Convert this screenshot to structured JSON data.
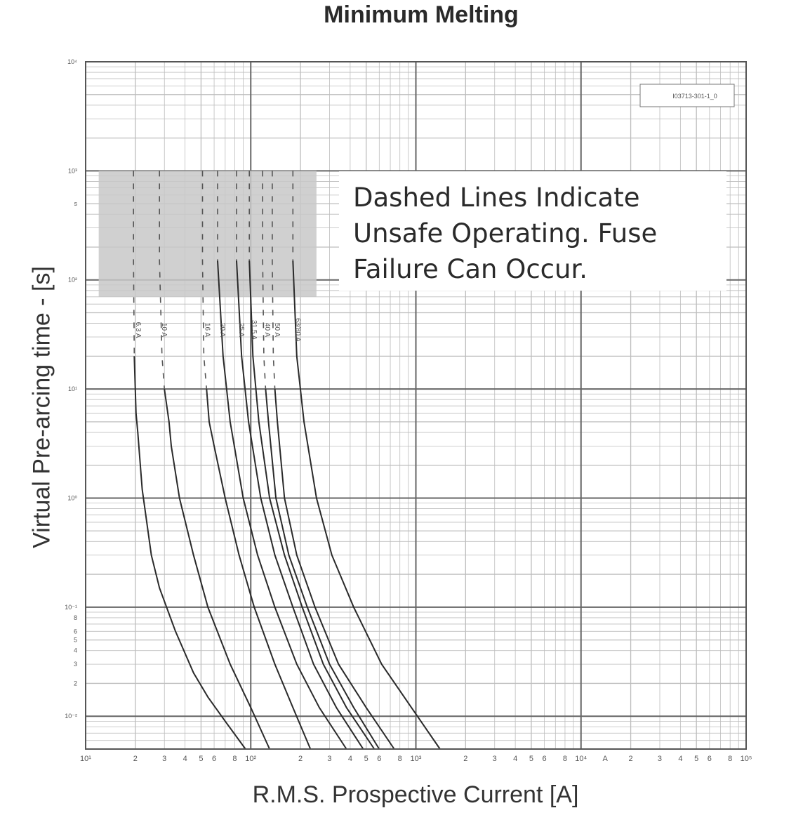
{
  "chart_data": {
    "type": "line",
    "title": "Minimum Melting",
    "xlabel": "R.M.S. Prospective Current [A]",
    "ylabel": "Virtual Pre-arcing time - [s]",
    "x_scale": "log",
    "y_scale": "log",
    "xlim": [
      10,
      100000
    ],
    "ylim": [
      0.005,
      10000
    ],
    "grid": true,
    "legend": "none",
    "code_label": "I03713-301-1_0",
    "note": {
      "lines": [
        "Dashed Lines Indicate",
        "Unsafe Operating. Fuse",
        "Failure Can Occur."
      ],
      "color": "#2a2a2a"
    },
    "shaded_region": {
      "x": [
        12,
        250
      ],
      "y": [
        70,
        1000
      ],
      "color": "#c8c8c8"
    },
    "x_ticks": [
      {
        "value": 10,
        "label": "10¹"
      },
      {
        "value": 20,
        "label": "2"
      },
      {
        "value": 30,
        "label": "3"
      },
      {
        "value": 40,
        "label": "4"
      },
      {
        "value": 50,
        "label": "5"
      },
      {
        "value": 60,
        "label": "6"
      },
      {
        "value": 80,
        "label": "8"
      },
      {
        "value": 100,
        "label": "10²"
      },
      {
        "value": 200,
        "label": "2"
      },
      {
        "value": 300,
        "label": "3"
      },
      {
        "value": 400,
        "label": "4"
      },
      {
        "value": 500,
        "label": "5"
      },
      {
        "value": 600,
        "label": "6"
      },
      {
        "value": 800,
        "label": "8"
      },
      {
        "value": 1000,
        "label": "10³"
      },
      {
        "value": 2000,
        "label": "2"
      },
      {
        "value": 3000,
        "label": "3"
      },
      {
        "value": 4000,
        "label": "4"
      },
      {
        "value": 5000,
        "label": "5"
      },
      {
        "value": 6000,
        "label": "6"
      },
      {
        "value": 8000,
        "label": "8"
      },
      {
        "value": 10000,
        "label": "10⁴"
      },
      {
        "value": 14000,
        "label": "A"
      },
      {
        "value": 20000,
        "label": "2"
      },
      {
        "value": 30000,
        "label": "3"
      },
      {
        "value": 40000,
        "label": "4"
      },
      {
        "value": 50000,
        "label": "5"
      },
      {
        "value": 60000,
        "label": "6"
      },
      {
        "value": 80000,
        "label": "8"
      },
      {
        "value": 100000,
        "label": "10⁵"
      }
    ],
    "y_ticks": [
      {
        "value": 10000,
        "label": "10⁴"
      },
      {
        "value": 1000,
        "label": "10³"
      },
      {
        "value": 500,
        "label": "s"
      },
      {
        "value": 100,
        "label": "10²"
      },
      {
        "value": 10,
        "label": "10¹"
      },
      {
        "value": 1,
        "label": "10⁰"
      },
      {
        "value": 0.1,
        "label": "10⁻¹"
      },
      {
        "value": 0.08,
        "label": "8"
      },
      {
        "value": 0.06,
        "label": "6"
      },
      {
        "value": 0.05,
        "label": "5"
      },
      {
        "value": 0.04,
        "label": "4"
      },
      {
        "value": 0.03,
        "label": "3"
      },
      {
        "value": 0.02,
        "label": "2"
      },
      {
        "value": 0.01,
        "label": "10⁻²"
      }
    ],
    "series": [
      {
        "name": "6.3 A",
        "dashed_from": 3,
        "x": [
          19.5,
          19.5,
          19.7,
          20.2,
          20.7,
          22,
          25,
          28,
          35,
          45,
          55,
          70,
          93
        ],
        "y": [
          1000,
          150,
          20,
          6,
          4,
          1.2,
          0.3,
          0.15,
          0.06,
          0.025,
          0.015,
          0.009,
          0.005
        ]
      },
      {
        "name": "10 A",
        "dashed_from": 4,
        "x": [
          28,
          28,
          29,
          30,
          32,
          33,
          37,
          45,
          55,
          75,
          100,
          130
        ],
        "y": [
          1000,
          150,
          20,
          10,
          5,
          3,
          1,
          0.3,
          0.1,
          0.03,
          0.012,
          0.005
        ]
      },
      {
        "name": "16 A",
        "dashed_from": 4,
        "x": [
          51,
          51,
          52,
          54,
          56,
          60,
          70,
          85,
          105,
          140,
          180,
          230
        ],
        "y": [
          1000,
          150,
          20,
          10,
          5,
          3,
          1,
          0.3,
          0.1,
          0.03,
          0.012,
          0.005
        ]
      },
      {
        "name": "20 A",
        "dashed_from": 2,
        "x": [
          63,
          63,
          68,
          75,
          90,
          110,
          140,
          190,
          260,
          380
        ],
        "y": [
          1000,
          150,
          20,
          5,
          1,
          0.3,
          0.1,
          0.03,
          0.012,
          0.005
        ]
      },
      {
        "name": "25 A",
        "dashed_from": 2,
        "x": [
          82,
          82,
          88,
          97,
          115,
          140,
          180,
          240,
          330,
          480
        ],
        "y": [
          1000,
          150,
          20,
          5,
          1,
          0.3,
          0.1,
          0.03,
          0.012,
          0.005
        ]
      },
      {
        "name": "31.5 A",
        "dashed_from": 2,
        "x": [
          98,
          98,
          103,
          112,
          130,
          160,
          205,
          275,
          380,
          560
        ],
        "y": [
          1000,
          150,
          20,
          5,
          1,
          0.3,
          0.1,
          0.03,
          0.012,
          0.005
        ]
      },
      {
        "name": "40 A",
        "dashed_from": 4,
        "x": [
          118,
          118,
          120,
          123,
          128,
          142,
          170,
          220,
          300,
          420,
          600
        ],
        "y": [
          1000,
          150,
          20,
          10,
          5,
          1,
          0.3,
          0.1,
          0.03,
          0.012,
          0.005
        ]
      },
      {
        "name": "50 A",
        "dashed_from": 4,
        "x": [
          135,
          135,
          137,
          140,
          145,
          160,
          190,
          245,
          340,
          500,
          740
        ],
        "y": [
          1000,
          150,
          20,
          10,
          5,
          1,
          0.3,
          0.1,
          0.03,
          0.012,
          0.005
        ]
      },
      {
        "name": "63/80 A",
        "dashed_from": 2,
        "x": [
          180,
          180,
          190,
          210,
          250,
          310,
          420,
          620,
          940,
          1400
        ],
        "y": [
          1000,
          150,
          20,
          5,
          1,
          0.3,
          0.1,
          0.03,
          0.012,
          0.005
        ]
      }
    ]
  }
}
